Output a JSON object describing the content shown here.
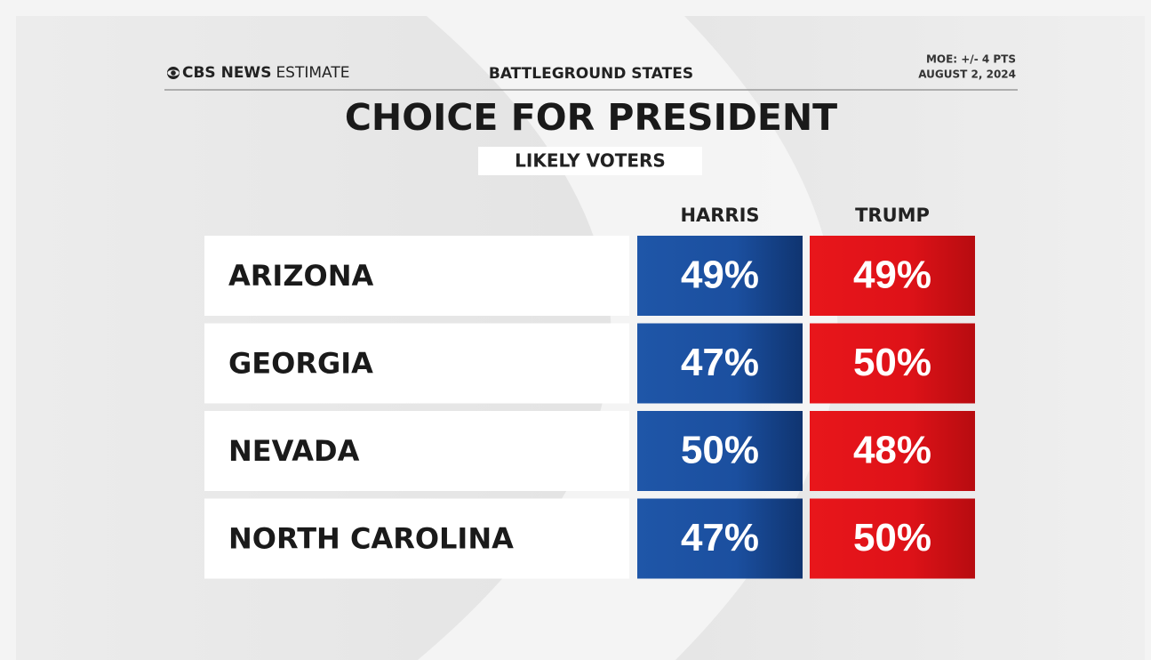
{
  "header": {
    "brand": "CBS NEWS",
    "brand_suffix": "ESTIMATE",
    "section": "BATTLEGROUND STATES",
    "moe": "MOE: +/- 4 PTS",
    "date": "AUGUST 2, 2024"
  },
  "title": "CHOICE FOR PRESIDENT",
  "subtitle": "LIKELY VOTERS",
  "table": {
    "columns": [
      "HARRIS",
      "TRUMP"
    ],
    "rows": [
      {
        "state": "ARIZONA",
        "values": [
          "49%",
          "49%"
        ]
      },
      {
        "state": "GEORGIA",
        "values": [
          "47%",
          "50%"
        ]
      },
      {
        "state": "NEVADA",
        "values": [
          "50%",
          "48%"
        ]
      },
      {
        "state": "NORTH CAROLINA",
        "values": [
          "47%",
          "50%"
        ]
      }
    ]
  }
}
